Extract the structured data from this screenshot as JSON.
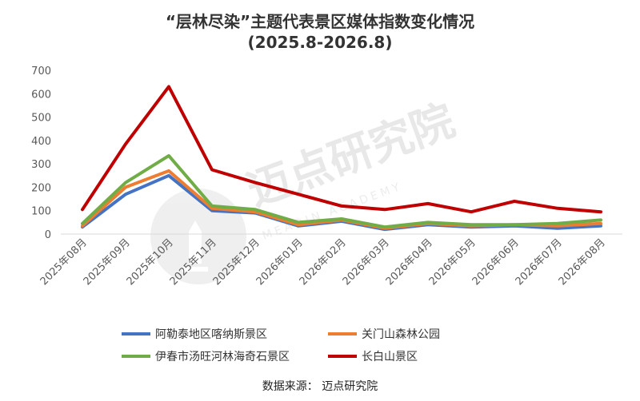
{
  "chart_data": {
    "type": "line",
    "title": "“层林尽染”主题代表景区媒体指数变化情况",
    "subtitle": "(2025.8-2026.8)",
    "categories": [
      "2025年08月",
      "2025年09月",
      "2025年10月",
      "2025年11月",
      "2025年12月",
      "2026年01月",
      "2026年02月",
      "2026年03月",
      "2026年04月",
      "2026年05月",
      "2026年06月",
      "2026年07月",
      "2026年08月"
    ],
    "ylim": [
      0,
      700
    ],
    "yticks": [
      0,
      100,
      200,
      300,
      400,
      500,
      600,
      700
    ],
    "grid": false,
    "legend_position": "bottom",
    "series": [
      {
        "name": "阿勒泰地区喀纳斯景区",
        "color": "#4472C4",
        "values": [
          30,
          170,
          250,
          100,
          90,
          35,
          55,
          20,
          40,
          30,
          35,
          25,
          35
        ]
      },
      {
        "name": "关门山森林公园",
        "color": "#ED7D31",
        "values": [
          35,
          200,
          270,
          110,
          95,
          40,
          60,
          25,
          45,
          35,
          40,
          35,
          45
        ]
      },
      {
        "name": "伊春市汤旺河林海奇石景区",
        "color": "#70AD47",
        "values": [
          45,
          220,
          335,
          120,
          105,
          50,
          65,
          30,
          50,
          40,
          40,
          45,
          60
        ]
      },
      {
        "name": "长白山景区",
        "color": "#C00000",
        "values": [
          105,
          385,
          630,
          275,
          220,
          170,
          120,
          105,
          130,
          95,
          140,
          110,
          95
        ]
      }
    ]
  },
  "source": "数据来源： 迈点研究院",
  "watermark": {
    "main": "迈点研究院",
    "sub": "MEADIN ACADEMY",
    "icon": "tower-logo-icon"
  }
}
